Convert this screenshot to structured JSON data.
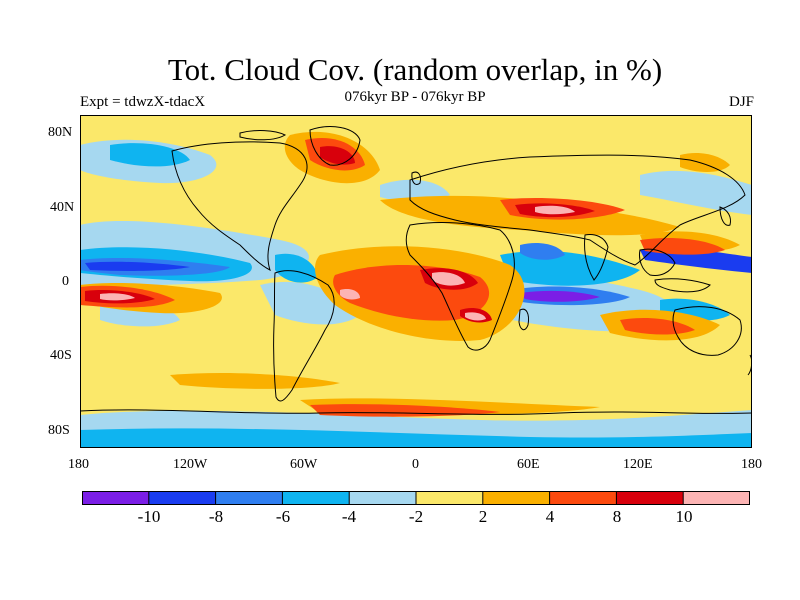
{
  "title": "Tot. Cloud Cov. (random overlap, in %)",
  "subtitle": "076kyr BP - 076kyr BP",
  "left_label": "Expt = tdwzX-tdacX",
  "right_label": "DJF",
  "y_ticks": [
    "80N",
    "40N",
    "0",
    "40S",
    "80S"
  ],
  "x_ticks": [
    "180",
    "120W",
    "60W",
    "0",
    "60E",
    "120E",
    "180"
  ],
  "colorbar": {
    "colors": [
      "#7b1ee6",
      "#1a3cf0",
      "#2f7ef0",
      "#0fb4f0",
      "#a6d8f0",
      "#fbe86a",
      "#fab000",
      "#fc4a0e",
      "#d8000c",
      "#fcb4b4"
    ],
    "labels": [
      "-10",
      "-8",
      "-6",
      "-4",
      "-2",
      "2",
      "4",
      "8",
      "10"
    ]
  },
  "palette": {
    "background": "#fbe86a",
    "light_blue": "#a6d8f0",
    "cyan": "#0fb4f0",
    "mid_blue": "#2f7ef0",
    "blue": "#1a3cf0",
    "purple": "#7b1ee6",
    "orange": "#fab000",
    "red_orange": "#fc4a0e",
    "red": "#d8000c",
    "pink": "#fcb4b4"
  }
}
